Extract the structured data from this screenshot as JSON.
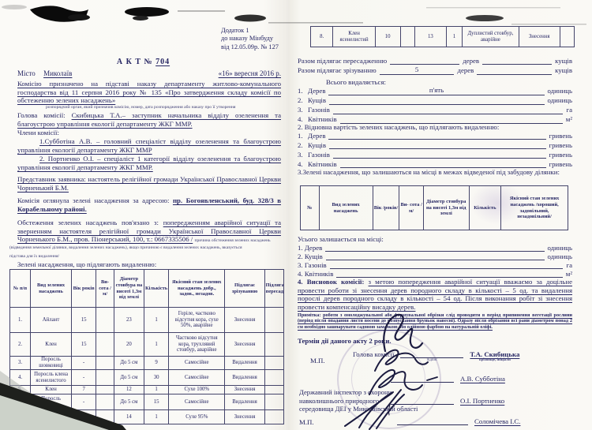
{
  "ink": "#262663",
  "left": {
    "annex": [
      "Додаток 1",
      "до наказу Мінбуду",
      "від 12.05.09р. № 127"
    ],
    "title_prefix": "А К Т №",
    "title_number": "704",
    "city_label": "Місто",
    "city_value": "Миколаїв",
    "date_value": "«16» вересня 2016 р.",
    "p_commission": "Комісію призначено на підставі наказу департаменту житлово-комунального господарства від 11 серпня 2016 року № 135 «Про затвердження складу комісії по обстеженню зелених насаджень»",
    "p_commission_note": "розпорядчий орган, який призначив комісію, номер, дата розпорядження або наказу про її утворення",
    "head_label": "Голова комісії:",
    "head_value": "Скибицька Т.А.– заступник начальника відділу озеленення та благоустрою управління екології департаменту ЖКГ ММР.",
    "members_label": "Члени комісії:",
    "member1": "1.Субботіна А.В. – головний спеціаліст відділу озеленення та благоустрою управління екології департаменту ЖКГ ММР",
    "member2": "2. Портненко О.І. – спеціаліст 1 категорії відділу озеленення та благоустрою управління екології департаменту ЖКГ ММР.",
    "p_representative": "Представник заявника: настоятель релігійної громади Української Православної Церкви Чорненький Б.М.",
    "p_inspect_label": "Комісія оглянула зелені насадження за адресою:",
    "p_inspect_value": "пр. Богоявленський, буд. 328/3 в Корабельному районі.",
    "p_reason_label": "Обстеження зелених насаджень пов'язано з:",
    "p_reason_value": "попередженням аварійної ситуації та зверненням настоятеля релігійної громади Української Православної Церкви Чорненького Б.М., пров. Піонерський, 100, т.: 0667335506 /",
    "p_reason_note1": "причина обстеження зелених насаджень",
    "p_reason_note2": "(відведення земельної ділянки, видалення зелених насаджень), якщо причиною є видалення зелених насаджень, вказується",
    "p_reason_note3": "підстава для їх видалення/",
    "table_caption": "Зелені насадження, що підлягають видаленню:",
    "table": {
      "headers": [
        "№ п/п",
        "Вид зелених насаджень",
        "Вік років",
        "Ви-сота /м/",
        "Діаметр стовбура на висоті 1,3м від землі",
        "Кількість",
        "Якісний стан зелених насаджень добр., задов., незадов.",
        "Підлягає зрізуванню",
        "Підлягає пересаджуванню"
      ],
      "rows": [
        [
          "1.",
          "Айлант",
          "15",
          "",
          "23",
          "1",
          "Горіле, частково відсутня кора, сухе 50%, аварійне",
          "Знесення",
          ""
        ],
        [
          "2.",
          "Клен",
          "15",
          "",
          "20",
          "1",
          "Частково відсутня кора, трухлявий стовбур, аварійне",
          "Знесення",
          ""
        ],
        [
          "3.",
          "Поросль шовковиці",
          "-",
          "",
          "До 5 см",
          "9",
          "Самосійне",
          "Видалення",
          ""
        ],
        [
          "4.",
          "Поросль клена ясенелистого",
          "-",
          "",
          "До 5 см",
          "30",
          "Самосійне",
          "Видалення",
          ""
        ],
        [
          "5.",
          "Клен",
          "7",
          "",
          "12",
          "1",
          "Сухе 100%",
          "Знесення",
          ""
        ],
        [
          "6.",
          "Поросль айланта",
          "-",
          "",
          "До 5 см",
          "15",
          "Самосійне",
          "Видалення",
          ""
        ],
        [
          "7.",
          "Клен ясенелистий",
          "10",
          "",
          "14",
          "1",
          "Сухе 95%",
          "Знесення",
          ""
        ]
      ]
    }
  },
  "right": {
    "cont_table": {
      "rows": [
        [
          "8.",
          "Клен ясенелистий",
          "10",
          "",
          "13",
          "1",
          "Дуплистий стовбур, аварійне",
          "Знесення",
          ""
        ]
      ]
    },
    "razom1": {
      "label": "Разом підлягає пересадженню",
      "value": "",
      "mid": "дерев",
      "value2": "",
      "unit": "кущів"
    },
    "razom2": {
      "label": "Разом підлягає зрізуванню",
      "value": "5",
      "mid": "дерев",
      "value2": "",
      "unit": "кущів"
    },
    "vsyoho_label": "Всього видаляється:",
    "vsyoho": [
      {
        "n": "1.",
        "label": "Дерев",
        "value": "п'ять",
        "unit": "одиниць"
      },
      {
        "n": "2.",
        "label": "Кущів",
        "value": "",
        "unit": "одиниць"
      },
      {
        "n": "3.",
        "label": "Газонів",
        "value": "",
        "unit": "га"
      },
      {
        "n": "4.",
        "label": "Квітників",
        "value": "",
        "unit": "м²"
      }
    ],
    "vartist_label": "2. Відновна вартість зелених насаджень, що підлягають видаленню:",
    "vartist": [
      {
        "n": "1.",
        "label": "Дерев",
        "value": "",
        "unit": "гривень"
      },
      {
        "n": "2.",
        "label": "Кущів",
        "value": "",
        "unit": "гривень"
      },
      {
        "n": "3.",
        "label": "Газонів",
        "value": "",
        "unit": "гривень"
      },
      {
        "n": "4.",
        "label": "Квітників",
        "value": "",
        "unit": "гривень"
      }
    ],
    "section3_label": "3.Зелені насадження, що залишаються на місці в межах відведеної під забудову ділянки:",
    "remain_table": {
      "headers": [
        "№",
        "Вид зелених насаджень",
        "Вік /років/",
        "Ви- сота /м/",
        "Діаметр стовбура на висоті 1,3м від землі",
        "Кількість",
        "Якісний стан зелених насаджень /хороший, задовільний, незадовільний/"
      ]
    },
    "remain_label": "Усього залишається на місці:",
    "remain": [
      {
        "n": "1.",
        "label": "Дерев",
        "value": "",
        "unit": "одиниць"
      },
      {
        "n": "2.",
        "label": "Кущів",
        "value": "",
        "unit": "одиниць"
      },
      {
        "n": "3.",
        "label": "Газонів",
        "value": "",
        "unit": "га"
      },
      {
        "n": "4.",
        "label": "Квітників",
        "value": "",
        "unit": "м²"
      }
    ],
    "conclusion_label": "4. Висновок комісії:",
    "conclusion_text": "з метою попередження аварійної ситуації вважаємо за доцільне провести роботи зі знесення дерев породного складу в кількості – 5 од. та видалення порослі дерев породного складу в кількості – 54 од. Після виконання робіт зі знесення провести компенсаційну висадку дерев.",
    "note_label": "Примітка:",
    "note_text": "роботи з омолоджувальної або формувальної обрізки слід проводити в період припинення вегетації рослини (період після опадання листя восени до розпускання бруньок навесні). Одразу після обрізання всі рани діаметром понад 2 см необхідно зашпарувати садовою замазкою або олійною фарбою на натуральній оліфі.",
    "term_text": "Термін дії даного акту 2 роки.",
    "signatures": {
      "mp1": "М.П.",
      "head_label": "Голова комісії",
      "head_sub1": "підпис",
      "head_sub2": "прізвище, ініціали",
      "head_name": "Т.А. Скибицька",
      "name2": "А.В. Субботіна",
      "name3": "О.І. Портненко",
      "inspector_l1": "Державний інспектор з охорони",
      "inspector_l2": "навколишнього природного",
      "inspector_l3": "середовища ДЕІ у Миколаївській області",
      "mp2": "М.П.",
      "name4": "Соломічева І.С."
    }
  }
}
